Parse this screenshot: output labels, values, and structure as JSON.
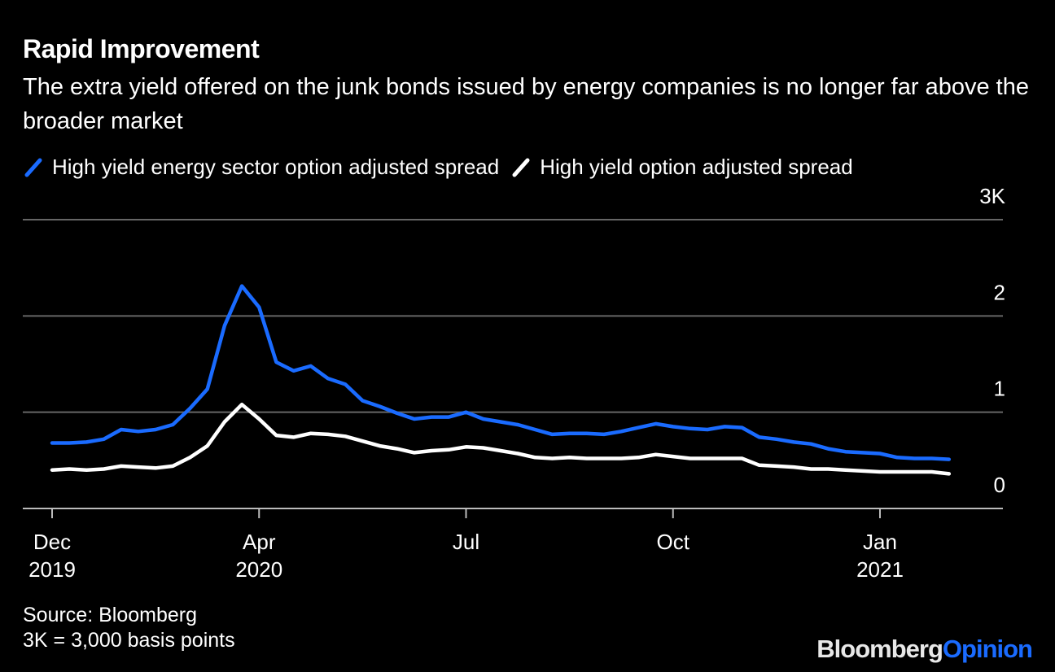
{
  "chart_data": {
    "type": "line",
    "title": "Rapid Improvement",
    "subtitle": "The extra yield offered on the junk bonds issued by energy companies is no longer far above the broader market",
    "categories": [
      "Dec\n2019",
      null,
      null,
      null,
      null,
      null,
      null,
      null,
      null,
      null,
      null,
      null,
      "Apr\n2020",
      null,
      null,
      null,
      null,
      null,
      null,
      null,
      null,
      null,
      null,
      null,
      "Jul",
      null,
      null,
      null,
      null,
      null,
      null,
      null,
      null,
      null,
      null,
      null,
      "Oct",
      null,
      null,
      null,
      null,
      null,
      null,
      null,
      null,
      null,
      null,
      null,
      "Jan\n2021",
      null,
      null,
      null,
      null
    ],
    "series": [
      {
        "name": "High yield energy sector option adjusted spread",
        "color": "#1a6bff",
        "values": [
          680,
          680,
          690,
          720,
          820,
          800,
          820,
          870,
          1040,
          1240,
          1900,
          2310,
          2090,
          1520,
          1430,
          1480,
          1350,
          1290,
          1120,
          1060,
          990,
          930,
          950,
          950,
          1000,
          930,
          900,
          870,
          820,
          770,
          780,
          780,
          770,
          800,
          840,
          880,
          850,
          830,
          820,
          850,
          840,
          740,
          720,
          690,
          670,
          620,
          590,
          580,
          570,
          530,
          520,
          520,
          510
        ]
      },
      {
        "name": "High yield option adjusted spread",
        "color": "#ffffff",
        "values": [
          400,
          410,
          400,
          410,
          440,
          430,
          420,
          440,
          530,
          650,
          900,
          1080,
          930,
          760,
          740,
          780,
          770,
          750,
          700,
          650,
          620,
          580,
          600,
          610,
          640,
          630,
          600,
          570,
          530,
          520,
          530,
          520,
          520,
          520,
          530,
          560,
          540,
          520,
          520,
          520,
          520,
          450,
          440,
          430,
          410,
          410,
          400,
          390,
          380,
          380,
          380,
          380,
          360
        ]
      }
    ],
    "ylim": [
      0,
      3000
    ],
    "yticks": [
      0,
      {
        "value": 1000,
        "label": "1"
      },
      {
        "value": 2000,
        "label": "2"
      },
      {
        "value": 3000,
        "label": "3K"
      }
    ],
    "grid": true,
    "source": "Source: Bloomberg",
    "note": "3K = 3,000 basis points",
    "logo_primary": "Bloomberg",
    "logo_accent": "Opinion"
  }
}
